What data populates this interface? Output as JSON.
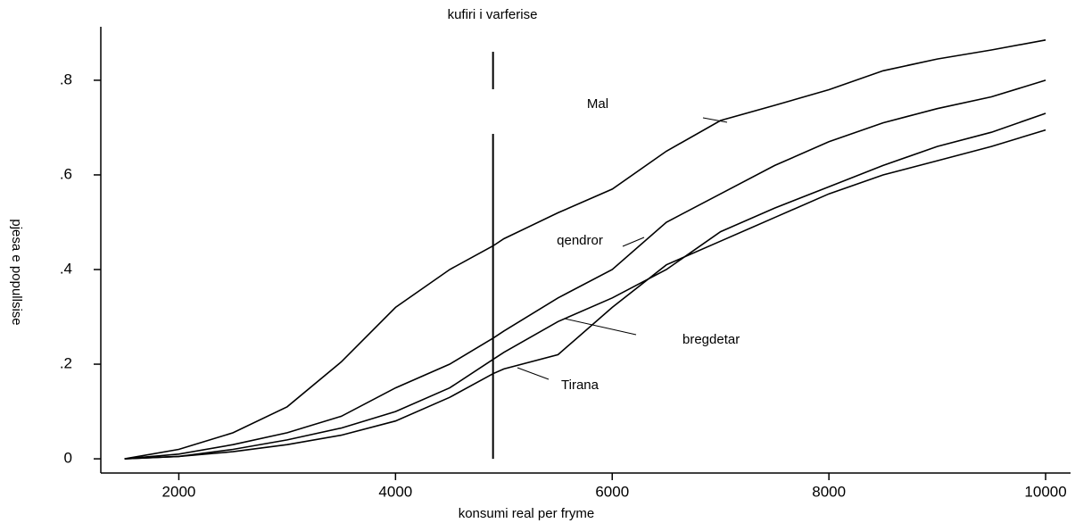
{
  "chart_data": {
    "type": "line",
    "title": "kufiri i varferise",
    "x_label": "konsumi real per fryme",
    "y_label": "pjesa e popullsise",
    "vline": 4900,
    "x": [
      1500,
      2000,
      2500,
      3000,
      3500,
      4000,
      4500,
      4900,
      5000,
      5500,
      6000,
      6500,
      7000,
      7500,
      8000,
      8500,
      9000,
      9500,
      10000
    ],
    "series": [
      {
        "name": "Mal",
        "color": "#000000",
        "values": [
          0,
          0.02,
          0.055,
          0.11,
          0.205,
          0.32,
          0.4,
          0.45,
          0.465,
          0.52,
          0.57,
          0.65,
          0.715,
          0.747,
          0.78,
          0.82,
          0.845,
          0.864,
          0.885
        ]
      },
      {
        "name": "qendror",
        "color": "#000000",
        "values": [
          0,
          0.01,
          0.03,
          0.055,
          0.09,
          0.15,
          0.2,
          0.255,
          0.27,
          0.34,
          0.4,
          0.5,
          0.56,
          0.62,
          0.67,
          0.71,
          0.74,
          0.765,
          0.8
        ]
      },
      {
        "name": "bregdetar",
        "color": "#000000",
        "values": [
          0,
          0.005,
          0.02,
          0.04,
          0.065,
          0.1,
          0.15,
          0.21,
          0.225,
          0.29,
          0.34,
          0.4,
          0.48,
          0.53,
          0.575,
          0.62,
          0.66,
          0.69,
          0.73
        ]
      },
      {
        "name": "Tirana",
        "color": "#000000",
        "values": [
          0,
          0.005,
          0.015,
          0.03,
          0.05,
          0.08,
          0.13,
          0.18,
          0.19,
          0.22,
          0.32,
          0.41,
          0.46,
          0.51,
          0.56,
          0.6,
          0.63,
          0.66,
          0.695
        ]
      }
    ],
    "xlim": [
      1280,
      10230
    ],
    "ylim": [
      -0.03,
      0.913
    ],
    "xticks": [
      2000,
      4000,
      6000,
      8000,
      10000
    ],
    "yticks": [
      0,
      {
        "value": 0.2,
        "label": ".2"
      },
      {
        "value": 0.4,
        "label": ".4"
      },
      {
        "value": 0.6,
        "label": ".6"
      },
      {
        "value": 0.8,
        "label": ".8"
      }
    ],
    "grid": false
  }
}
